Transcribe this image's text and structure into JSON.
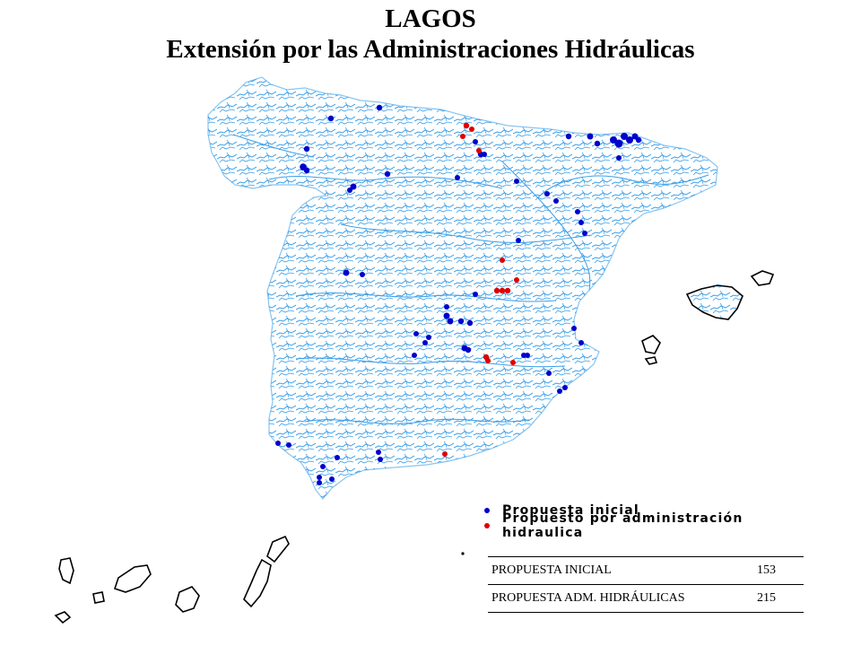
{
  "title": {
    "main": "LAGOS",
    "subtitle": "Extensión por las Administraciones Hidráulicas"
  },
  "legend": [
    {
      "label": "Propuesta inicial",
      "color": "#0000cc"
    },
    {
      "label": "Propuesto por administración hidraulica",
      "color": "#dd0000"
    }
  ],
  "summary_table": [
    {
      "label": "PROPUESTA INICIAL",
      "value": "153"
    },
    {
      "label": "PROPUESTA ADM. HIDRÁULICAS",
      "value": "215"
    }
  ],
  "colors": {
    "rivers": "#3a9ee8",
    "coast": "#000000",
    "initial": "#0000cc",
    "admin": "#dd0000"
  }
}
